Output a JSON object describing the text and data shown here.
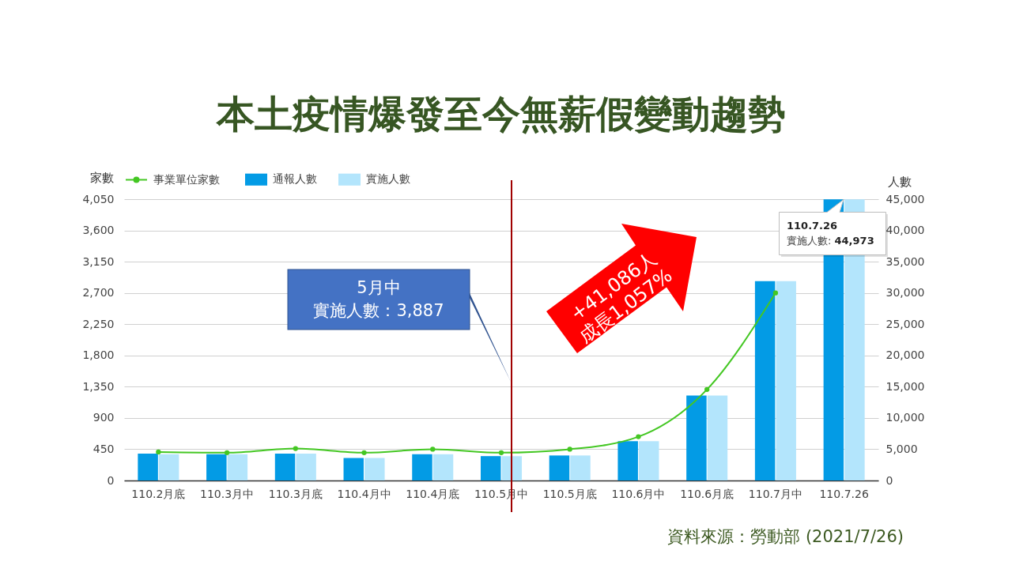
{
  "chart_data": {
    "type": "bar",
    "title": "本土疫情爆發至今無薪假變動趨勢",
    "ylabel": "家數",
    "y2label": "人數",
    "categories": [
      "110.2月底",
      "110.3月中",
      "110.3月底",
      "110.4月中",
      "110.4月底",
      "110.5月中",
      "110.5月底",
      "110.6月中",
      "110.6月底",
      "110.7月中",
      "110.7.26"
    ],
    "series": [
      {
        "name": "事業單位家數",
        "type": "line",
        "color": "#44c723",
        "marker": "circle",
        "values": [
          410,
          400,
          460,
          400,
          450,
          400,
          450,
          630,
          1310,
          2700,
          null
        ]
      },
      {
        "name": "通報人數",
        "axis": "y2",
        "color": "#039be5",
        "values": [
          4300,
          4200,
          4300,
          3600,
          4200,
          3900,
          4000,
          6300,
          13600,
          31900,
          44973
        ]
      },
      {
        "name": "實施人數",
        "axis": "y2",
        "color": "#b3e5fc",
        "values": [
          4200,
          4200,
          4300,
          3600,
          4200,
          3887,
          4000,
          6300,
          13600,
          31900,
          44973
        ]
      }
    ],
    "ylim": [
      0,
      4050
    ],
    "yticks": [
      0,
      450,
      900,
      {
        "value": 1350,
        "label": "1,350"
      },
      {
        "value": 1800,
        "label": "1,800"
      },
      {
        "value": 2250,
        "label": "2,250"
      },
      {
        "value": 2700,
        "label": "2,700"
      },
      {
        "value": 3150,
        "label": "3,150"
      },
      {
        "value": 3600,
        "label": "3,600"
      },
      {
        "value": 4050,
        "label": "4,050"
      }
    ],
    "y2lim": [
      0,
      45000
    ],
    "y2ticks": [
      0,
      {
        "value": 5000,
        "label": "5,000"
      },
      {
        "value": 10000,
        "label": "10,000"
      },
      {
        "value": 15000,
        "label": "15,000"
      },
      {
        "value": 20000,
        "label": "20,000"
      },
      {
        "value": 25000,
        "label": "25,000"
      },
      {
        "value": 30000,
        "label": "30,000"
      },
      {
        "value": 35000,
        "label": "35,000"
      },
      {
        "value": 40000,
        "label": "40,000"
      },
      {
        "value": 45000,
        "label": "45,000"
      }
    ],
    "grid": "y",
    "legend": "top left",
    "ref_lines": [
      {
        "axis": "x",
        "value": "110.5月中",
        "color": "#a00000"
      }
    ],
    "annotations": [
      "5月中",
      "實施人數：3,887",
      "+41,086人",
      "成長1,057%",
      "110.7.26",
      "實施人數: 44,973",
      "資料來源：勞動部 (2021/7/26)"
    ]
  }
}
